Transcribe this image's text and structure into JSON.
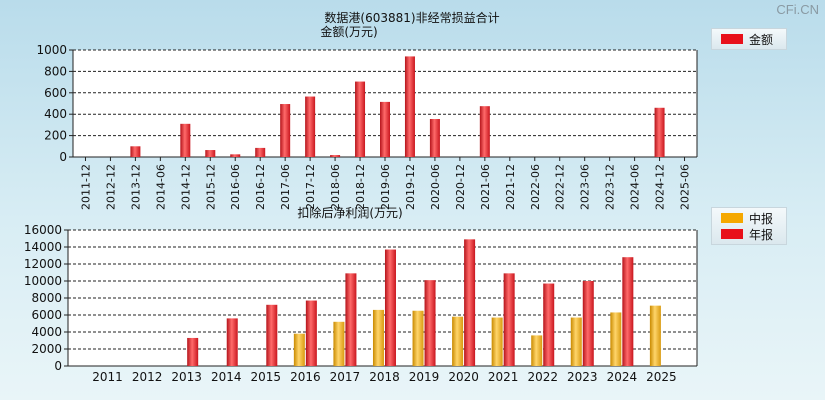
{
  "watermark": "CFi.CN",
  "chart_data": [
    {
      "type": "bar",
      "title": "数据港(603881)非经常损益合计",
      "ylabel": "金额(万元)",
      "ylim": [
        0,
        1000
      ],
      "yticks": [
        0,
        200,
        400,
        600,
        800,
        1000
      ],
      "grid": true,
      "legend_position": "right",
      "categories": [
        "2011-12",
        "2012-12",
        "2013-12",
        "2014-06",
        "2014-12",
        "2015-12",
        "2016-06",
        "2016-12",
        "2017-06",
        "2017-12",
        "2018-06",
        "2018-12",
        "2019-06",
        "2019-12",
        "2020-06",
        "2020-12",
        "2021-06",
        "2021-12",
        "2022-06",
        "2022-12",
        "2023-06",
        "2023-12",
        "2024-06",
        "2024-12",
        "2025-06"
      ],
      "series": [
        {
          "name": "金额",
          "color": "#e8101a",
          "values": [
            0,
            0,
            100,
            0,
            310,
            65,
            25,
            85,
            495,
            565,
            18,
            705,
            515,
            940,
            355,
            0,
            475,
            0,
            0,
            0,
            0,
            0,
            0,
            460,
            0
          ]
        }
      ]
    },
    {
      "type": "bar",
      "title": "扣除后净利润(万元)",
      "ylim": [
        0,
        16000
      ],
      "yticks": [
        0,
        2000,
        4000,
        6000,
        8000,
        10000,
        12000,
        14000,
        16000
      ],
      "grid": true,
      "legend_position": "right",
      "categories": [
        "2011",
        "2012",
        "2013",
        "2014",
        "2015",
        "2016",
        "2017",
        "2018",
        "2019",
        "2020",
        "2021",
        "2022",
        "2023",
        "2024",
        "2025"
      ],
      "series": [
        {
          "name": "中报",
          "color": "#f5a800",
          "values": [
            null,
            null,
            null,
            null,
            null,
            3800,
            5200,
            6600,
            6500,
            5800,
            5700,
            3600,
            5700,
            6300,
            7100
          ]
        },
        {
          "name": "年报",
          "color": "#e8101a",
          "values": [
            null,
            null,
            3300,
            5600,
            7200,
            7700,
            10900,
            13700,
            10100,
            14900,
            10900,
            9700,
            10000,
            12800,
            null
          ]
        }
      ]
    }
  ]
}
